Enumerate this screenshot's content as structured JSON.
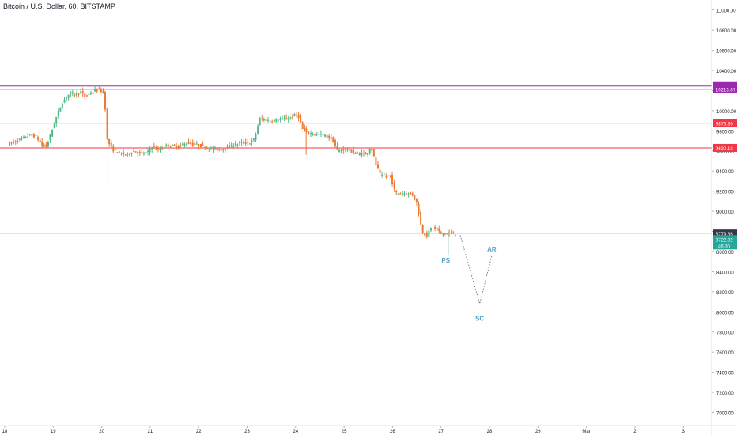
{
  "symbol_title": "Bitcoin / U.S. Dollar, 60, BITSTAMP",
  "colors": {
    "up": "#53b987",
    "down": "#eb7a34",
    "support_resistance": "#f23645",
    "top_lines": "#9c27b0",
    "current_price_line": "#b2dfdb",
    "projection": "#787b86",
    "annotation": "#4ba3c7",
    "price_badge_dark": "#363a45",
    "price_badge_green": "#26a69a"
  },
  "chart_data": {
    "type": "candlestick",
    "title": "Bitcoin / U.S. Dollar, 60, BITSTAMP",
    "x_tick_labels": [
      "18",
      "19",
      "20",
      "21",
      "22",
      "23",
      "24",
      "25",
      "26",
      "27",
      "28",
      "29",
      "Mar",
      "2",
      "3"
    ],
    "y_tick_labels": [
      "11000.00",
      "10800.00",
      "10600.00",
      "10400.00",
      "10200.00",
      "10000.00",
      "9800.00",
      "9600.00",
      "9400.00",
      "9200.00",
      "9000.00",
      "8800.00",
      "8600.00",
      "8400.00",
      "8200.00",
      "8000.00",
      "7800.00",
      "7600.00",
      "7400.00",
      "7200.00",
      "7000.00"
    ],
    "ylim": [
      6870,
      11100
    ],
    "xlim_days": [
      0,
      14.3
    ],
    "horizontal_lines": [
      {
        "price": 10244.87,
        "label": "10244.87",
        "color": "#9c27b0"
      },
      {
        "price": 10213.87,
        "label": "10213.87",
        "color": "#9c27b0"
      },
      {
        "price": 9876.36,
        "label": "9876.36",
        "color": "#f23645"
      },
      {
        "price": 9630.12,
        "label": "9630.12",
        "color": "#f23645"
      }
    ],
    "current_price": {
      "price": 8779.36,
      "label": "8779.36"
    },
    "last_price_badge": {
      "price": 8722.92,
      "label": "8722.92",
      "countdown": "46:30"
    },
    "price_path": [
      [
        0.0,
        9670
      ],
      [
        0.15,
        9690
      ],
      [
        0.3,
        9720
      ],
      [
        0.45,
        9760
      ],
      [
        0.6,
        9740
      ],
      [
        0.7,
        9660
      ],
      [
        0.8,
        9640
      ],
      [
        0.9,
        9780
      ],
      [
        0.95,
        9850
      ],
      [
        1.02,
        9950
      ],
      [
        1.1,
        10050
      ],
      [
        1.2,
        10130
      ],
      [
        1.3,
        10180
      ],
      [
        1.4,
        10160
      ],
      [
        1.5,
        10190
      ],
      [
        1.6,
        10140
      ],
      [
        1.7,
        10170
      ],
      [
        1.8,
        10200
      ],
      [
        1.9,
        10210
      ],
      [
        1.95,
        10190
      ],
      [
        2.0,
        10170
      ],
      [
        2.05,
        9720
      ],
      [
        2.15,
        9620
      ],
      [
        2.3,
        9580
      ],
      [
        2.45,
        9560
      ],
      [
        2.6,
        9600
      ],
      [
        2.75,
        9570
      ],
      [
        2.9,
        9590
      ],
      [
        3.0,
        9650
      ],
      [
        3.1,
        9600
      ],
      [
        3.3,
        9660
      ],
      [
        3.5,
        9640
      ],
      [
        3.7,
        9680
      ],
      [
        3.9,
        9660
      ],
      [
        4.0,
        9650
      ],
      [
        4.2,
        9620
      ],
      [
        4.4,
        9610
      ],
      [
        4.6,
        9650
      ],
      [
        4.8,
        9680
      ],
      [
        5.0,
        9680
      ],
      [
        5.1,
        9720
      ],
      [
        5.2,
        9920
      ],
      [
        5.4,
        9900
      ],
      [
        5.6,
        9910
      ],
      [
        5.8,
        9920
      ],
      [
        5.95,
        9960
      ],
      [
        6.0,
        9950
      ],
      [
        6.1,
        9800
      ],
      [
        6.3,
        9770
      ],
      [
        6.5,
        9760
      ],
      [
        6.7,
        9720
      ],
      [
        6.8,
        9600
      ],
      [
        7.0,
        9620
      ],
      [
        7.2,
        9570
      ],
      [
        7.4,
        9570
      ],
      [
        7.5,
        9640
      ],
      [
        7.6,
        9470
      ],
      [
        7.7,
        9350
      ],
      [
        7.9,
        9350
      ],
      [
        8.0,
        9180
      ],
      [
        8.2,
        9180
      ],
      [
        8.35,
        9170
      ],
      [
        8.45,
        9080
      ],
      [
        8.55,
        8800
      ],
      [
        8.65,
        8760
      ],
      [
        8.75,
        8840
      ],
      [
        8.85,
        8820
      ],
      [
        8.95,
        8780
      ],
      [
        9.1,
        8780
      ],
      [
        9.2,
        8780
      ]
    ],
    "candles": [
      {
        "o": 9660,
        "h": 9720,
        "l": 9620,
        "c": 9700
      },
      {
        "o": 9700,
        "h": 9780,
        "l": 9680,
        "c": 9740
      },
      {
        "o": 9740,
        "h": 9790,
        "l": 9600,
        "c": 9650
      },
      {
        "o": 9650,
        "h": 10000,
        "l": 9630,
        "c": 9980
      },
      {
        "o": 9980,
        "h": 10160,
        "l": 9950,
        "c": 10140
      },
      {
        "o": 10140,
        "h": 10300,
        "l": 10080,
        "c": 10180
      },
      {
        "o": 10180,
        "h": 10230,
        "l": 10100,
        "c": 10130
      },
      {
        "o": 10130,
        "h": 10260,
        "l": 10110,
        "c": 10200
      },
      {
        "o": 10200,
        "h": 10310,
        "l": 9290,
        "c": 9650
      },
      {
        "o": 9650,
        "h": 9700,
        "l": 9490,
        "c": 9570
      },
      {
        "o": 9570,
        "h": 9680,
        "l": 9500,
        "c": 9610
      },
      {
        "o": 9610,
        "h": 9650,
        "l": 9420,
        "c": 9600
      },
      {
        "o": 9600,
        "h": 9720,
        "l": 9590,
        "c": 9690
      },
      {
        "o": 9690,
        "h": 9760,
        "l": 9640,
        "c": 9650
      },
      {
        "o": 9650,
        "h": 9690,
        "l": 9570,
        "c": 9620
      },
      {
        "o": 9620,
        "h": 9650,
        "l": 9570,
        "c": 9610
      },
      {
        "o": 9610,
        "h": 9710,
        "l": 9600,
        "c": 9690
      },
      {
        "o": 9690,
        "h": 9740,
        "l": 9660,
        "c": 9690
      },
      {
        "o": 9690,
        "h": 10000,
        "l": 9680,
        "c": 9910
      },
      {
        "o": 9910,
        "h": 9980,
        "l": 9880,
        "c": 9940
      },
      {
        "o": 9940,
        "h": 10040,
        "l": 9870,
        "c": 9950
      },
      {
        "o": 9950,
        "h": 9950,
        "l": 9740,
        "c": 9770
      },
      {
        "o": 9770,
        "h": 9810,
        "l": 9560,
        "c": 9720
      },
      {
        "o": 9720,
        "h": 9730,
        "l": 9510,
        "c": 9590
      },
      {
        "o": 9590,
        "h": 9660,
        "l": 9540,
        "c": 9560
      },
      {
        "o": 9560,
        "h": 9570,
        "l": 9320,
        "c": 9340
      },
      {
        "o": 9340,
        "h": 9380,
        "l": 9140,
        "c": 9180
      },
      {
        "o": 9180,
        "h": 9270,
        "l": 9100,
        "c": 9200
      },
      {
        "o": 9200,
        "h": 9200,
        "l": 8750,
        "c": 8780
      },
      {
        "o": 8780,
        "h": 8840,
        "l": 8560,
        "c": 8722.92
      }
    ],
    "projection_path": [
      [
        9.3,
        8760
      ],
      [
        9.7,
        8080
      ],
      [
        9.95,
        8560
      ]
    ],
    "annotations": [
      {
        "label": "PS",
        "x": 9.0,
        "price": 8490
      },
      {
        "label": "SC",
        "x": 9.7,
        "price": 7910
      },
      {
        "label": "AR",
        "x": 9.95,
        "price": 8600
      }
    ]
  }
}
